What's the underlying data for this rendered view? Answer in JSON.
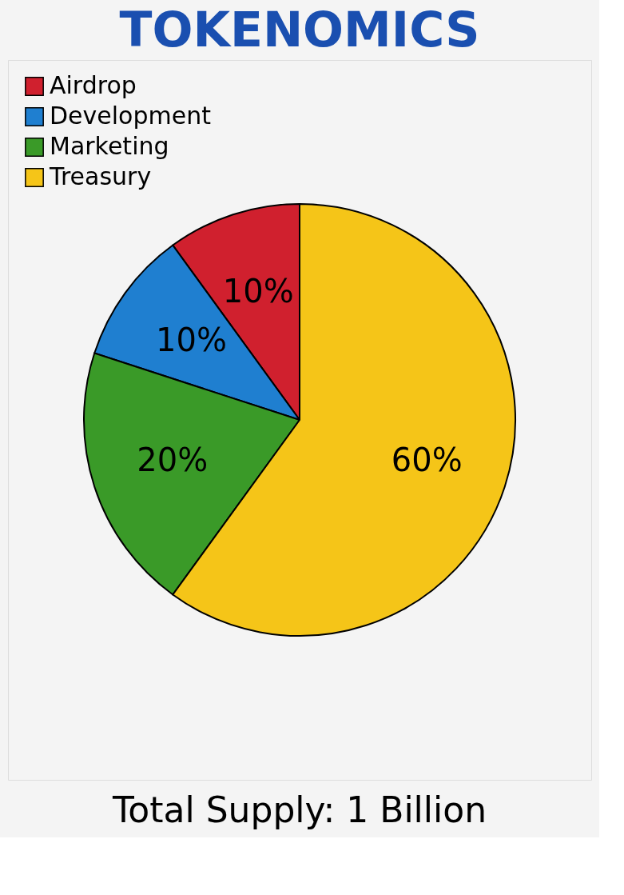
{
  "chart_data": {
    "type": "pie",
    "title": "TOKENOMICS",
    "categories": [
      "Airdrop",
      "Development",
      "Marketing",
      "Treasury"
    ],
    "values": [
      10,
      10,
      20,
      60
    ],
    "colors": [
      "#d0202e",
      "#1f7fd0",
      "#3a9a28",
      "#f5c518"
    ],
    "value_labels": [
      "10%",
      "10%",
      "20%",
      "60%"
    ],
    "legend": "top left",
    "annotations": [
      "Total Supply: 1 Billion"
    ]
  }
}
